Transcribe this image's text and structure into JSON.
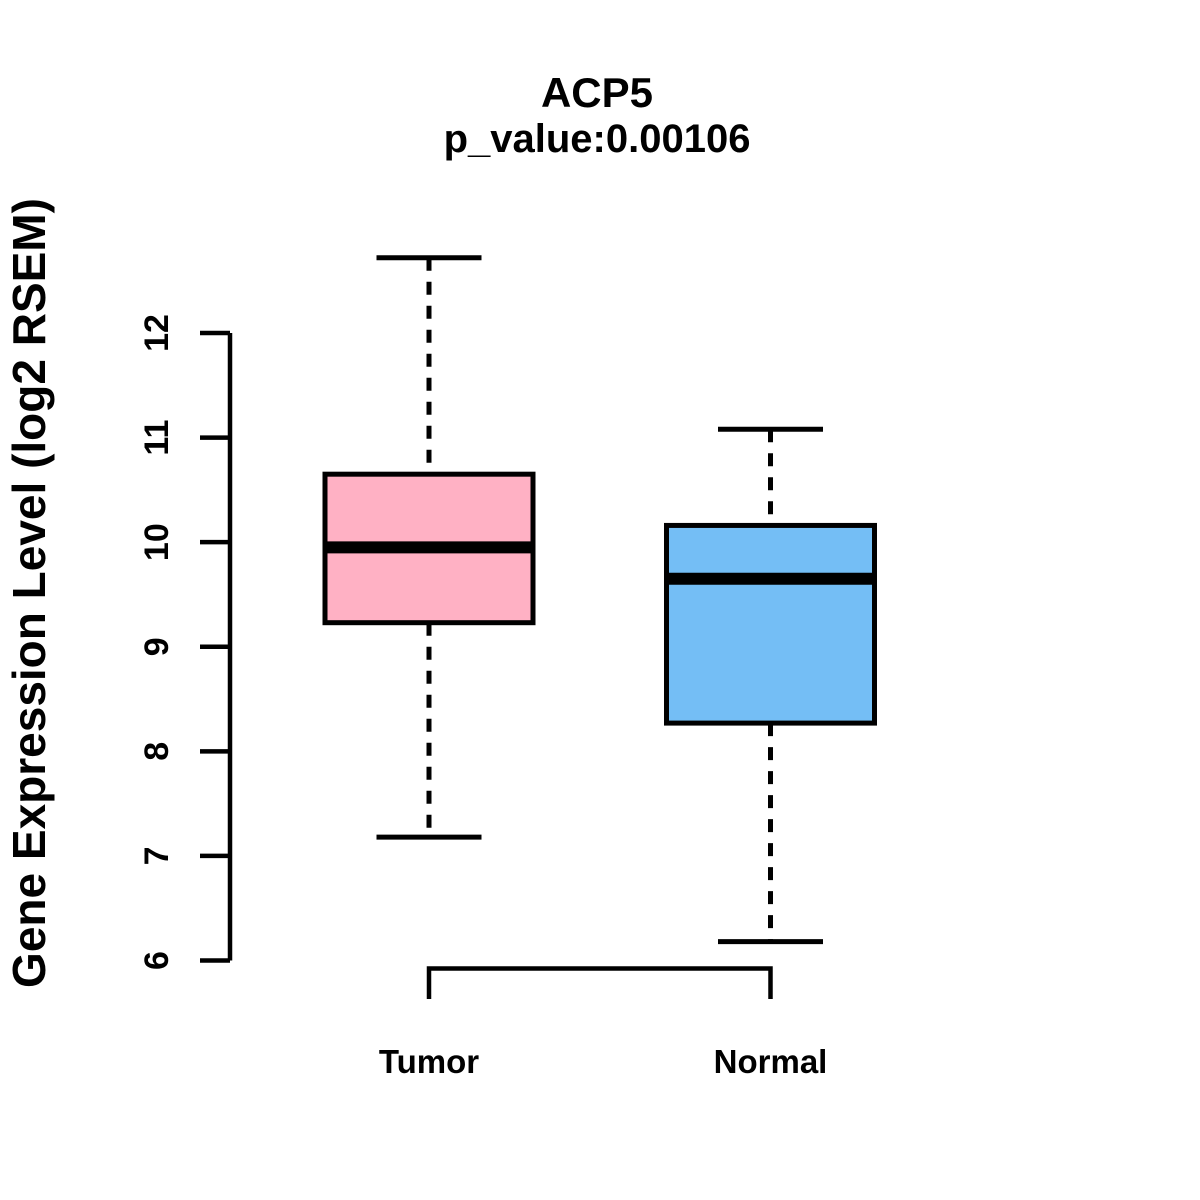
{
  "figure": {
    "title": "ACP5",
    "subtitle": "p_value:0.00106",
    "y_axis_label": "Gene Expression Level (log2 RSEM)"
  },
  "chart_data": {
    "type": "boxplot",
    "title": "ACP5",
    "subtitle": "p_value:0.00106",
    "gene": "ACP5",
    "p_value": 0.00106,
    "xlabel": "",
    "ylabel": "Gene Expression Level (log2 RSEM)",
    "ylim": [
      6,
      12
    ],
    "yticks": [
      6,
      7,
      8,
      9,
      10,
      11,
      12
    ],
    "grid": false,
    "legend": "none",
    "whisker_style": "dashed",
    "categories": [
      "Tumor",
      "Normal"
    ],
    "series": [
      {
        "name": "Tumor",
        "fill": "#FFB1C4",
        "whisker_low": 7.18,
        "q1": 9.23,
        "median": 9.95,
        "q3": 10.65,
        "whisker_high": 12.72
      },
      {
        "name": "Normal",
        "fill": "#74BEF5",
        "whisker_low": 6.18,
        "q1": 8.27,
        "median": 9.65,
        "q3": 10.16,
        "whisker_high": 11.08
      }
    ],
    "colors": {
      "box_border": "#000000",
      "median_line": "#000000",
      "axis": "#000000",
      "text": "#000000",
      "background": "#FFFFFF"
    }
  }
}
